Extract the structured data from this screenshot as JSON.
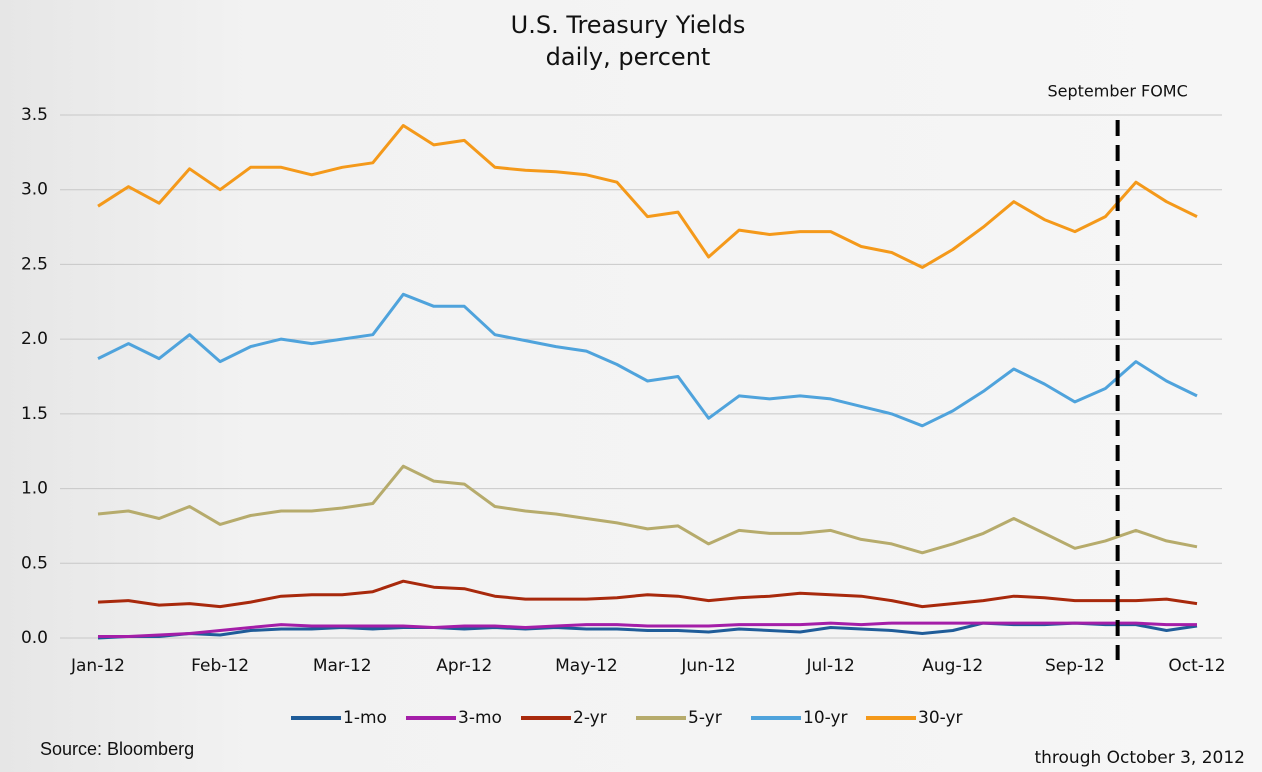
{
  "chart_data": {
    "type": "line",
    "title": "U.S. Treasury Yields",
    "subtitle": "daily, percent",
    "source": "Source: Bloomberg",
    "note": "through October 3, 2012",
    "categories": [
      "Jan-12",
      null,
      null,
      null,
      "Feb-12",
      null,
      null,
      null,
      "Mar-12",
      null,
      null,
      null,
      "Apr-12",
      null,
      null,
      null,
      "May-12",
      null,
      null,
      null,
      "Jun-12",
      null,
      null,
      null,
      "Jul-12",
      null,
      null,
      null,
      "Aug-12",
      null,
      null,
      null,
      "Sep-12",
      null,
      null,
      null,
      "Oct-12"
    ],
    "series": [
      {
        "name": "1-mo",
        "color": "#1f5c99",
        "values": [
          0.0,
          0.01,
          0.01,
          0.03,
          0.02,
          0.05,
          0.06,
          0.06,
          0.07,
          0.06,
          0.07,
          0.07,
          0.06,
          0.07,
          0.06,
          0.07,
          0.06,
          0.06,
          0.05,
          0.05,
          0.04,
          0.06,
          0.05,
          0.04,
          0.07,
          0.06,
          0.05,
          0.03,
          0.05,
          0.1,
          0.09,
          0.09,
          0.1,
          0.09,
          0.09,
          0.05,
          0.08
        ]
      },
      {
        "name": "3-mo",
        "color": "#a41ea8",
        "values": [
          0.01,
          0.01,
          0.02,
          0.03,
          0.05,
          0.07,
          0.09,
          0.08,
          0.08,
          0.08,
          0.08,
          0.07,
          0.08,
          0.08,
          0.07,
          0.08,
          0.09,
          0.09,
          0.08,
          0.08,
          0.08,
          0.09,
          0.09,
          0.09,
          0.1,
          0.09,
          0.1,
          0.1,
          0.1,
          0.1,
          0.1,
          0.1,
          0.1,
          0.1,
          0.1,
          0.09,
          0.09
        ]
      },
      {
        "name": "2-yr",
        "color": "#a8290c",
        "values": [
          0.24,
          0.25,
          0.22,
          0.23,
          0.21,
          0.24,
          0.28,
          0.29,
          0.29,
          0.31,
          0.38,
          0.34,
          0.33,
          0.28,
          0.26,
          0.26,
          0.26,
          0.27,
          0.29,
          0.28,
          0.25,
          0.27,
          0.28,
          0.3,
          0.29,
          0.28,
          0.25,
          0.21,
          0.23,
          0.25,
          0.28,
          0.27,
          0.25,
          0.25,
          0.25,
          0.26,
          0.23
        ]
      },
      {
        "name": "5-yr",
        "color": "#b6ab6c",
        "values": [
          0.83,
          0.85,
          0.8,
          0.88,
          0.76,
          0.82,
          0.85,
          0.85,
          0.87,
          0.9,
          1.15,
          1.05,
          1.03,
          0.88,
          0.85,
          0.83,
          0.8,
          0.77,
          0.73,
          0.75,
          0.63,
          0.72,
          0.7,
          0.7,
          0.72,
          0.66,
          0.63,
          0.57,
          0.63,
          0.7,
          0.8,
          0.7,
          0.6,
          0.65,
          0.72,
          0.65,
          0.61
        ]
      },
      {
        "name": "10-yr",
        "color": "#4fa3dc",
        "values": [
          1.87,
          1.97,
          1.87,
          2.03,
          1.85,
          1.95,
          2.0,
          1.97,
          2.0,
          2.03,
          2.3,
          2.22,
          2.22,
          2.03,
          1.99,
          1.95,
          1.92,
          1.83,
          1.72,
          1.75,
          1.47,
          1.62,
          1.6,
          1.62,
          1.6,
          1.55,
          1.5,
          1.42,
          1.52,
          1.65,
          1.8,
          1.7,
          1.58,
          1.67,
          1.85,
          1.72,
          1.62
        ]
      },
      {
        "name": "30-yr",
        "color": "#f4991a",
        "values": [
          2.89,
          3.02,
          2.91,
          3.14,
          3.0,
          3.15,
          3.15,
          3.1,
          3.15,
          3.18,
          3.43,
          3.3,
          3.33,
          3.15,
          3.13,
          3.12,
          3.1,
          3.05,
          2.82,
          2.85,
          2.55,
          2.73,
          2.7,
          2.72,
          2.72,
          2.62,
          2.58,
          2.48,
          2.6,
          2.75,
          2.92,
          2.8,
          2.72,
          2.82,
          3.05,
          2.92,
          2.82
        ]
      }
    ],
    "vline": {
      "label": "September FOMC",
      "x": 33.4
    },
    "ylim": [
      0,
      3.5
    ],
    "yticks": [
      {
        "value": 0,
        "label": "0.0"
      },
      0.5,
      {
        "value": 1,
        "label": "1.0"
      },
      1.5,
      {
        "value": 2,
        "label": "2.0"
      },
      2.5,
      {
        "value": 3,
        "label": "3.0"
      },
      3.5
    ],
    "grid": true,
    "legend": "bottom"
  }
}
